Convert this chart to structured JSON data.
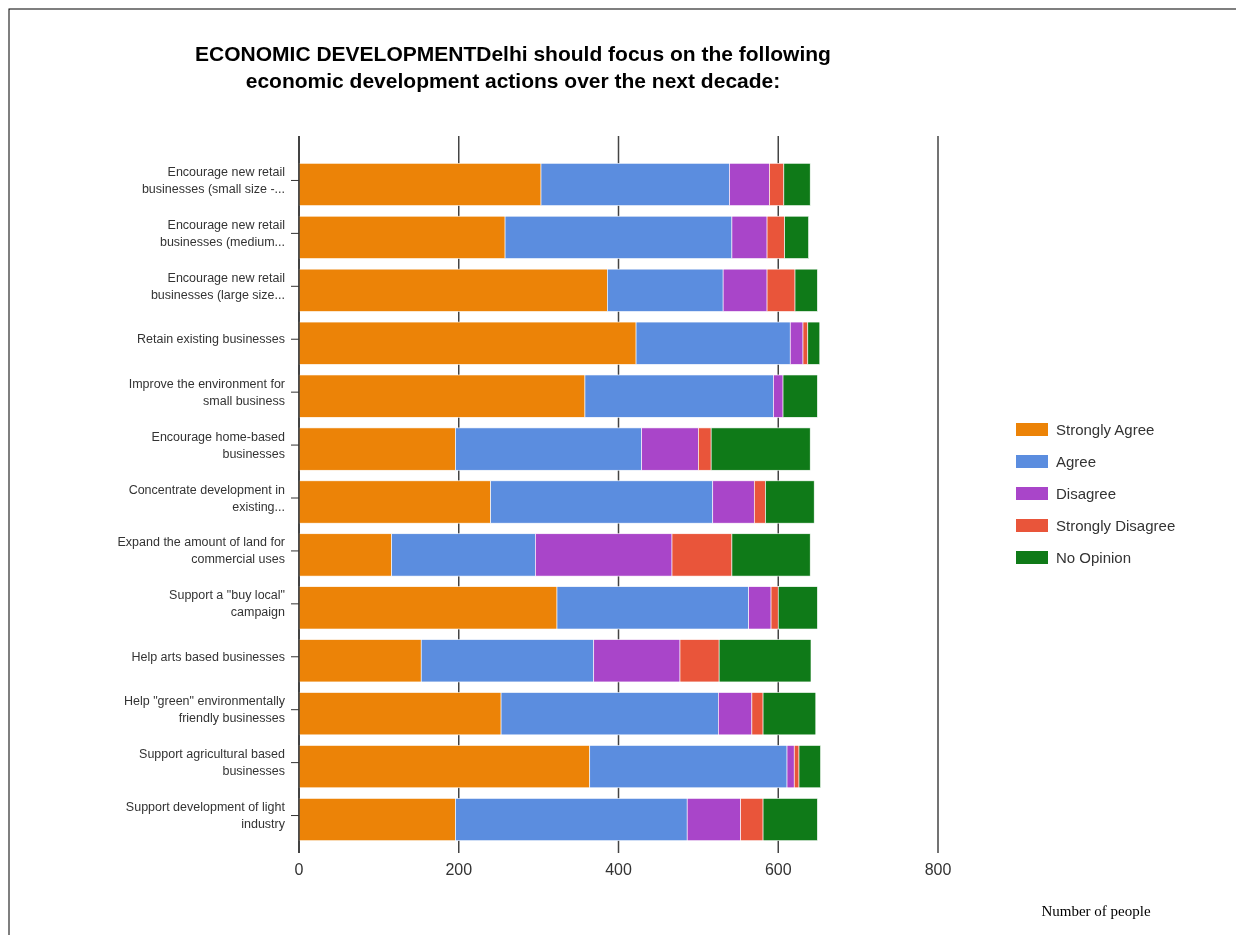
{
  "chart_data": {
    "type": "bar",
    "orientation": "horizontal",
    "stacked": true,
    "title": "ECONOMIC DEVELOPMENTDelhi should focus on the following economic development actions over the next decade:",
    "annotations": [
      "Number of people"
    ],
    "categories": [
      "Encourage new retail businesses (small size -...",
      "Encourage new retail businesses (medium...",
      "Encourage new retail businesses (large size...",
      "Retain existing businesses",
      "Improve the environment for small business",
      "Encourage home-based businesses",
      "Concentrate development in existing...",
      "Expand the amount of land for commercial uses",
      "Support a \"buy local\" campaign",
      "Help arts based businesses",
      "Help \"green\" environmentally friendly businesses",
      "Support agricultural based businesses",
      "Support development of light industry"
    ],
    "series": [
      {
        "name": "Strongly Agree",
        "color": "#ec8307",
        "values": [
          303,
          258,
          386,
          422,
          358,
          196,
          240,
          116,
          323,
          153,
          253,
          364,
          196
        ]
      },
      {
        "name": "Agree",
        "color": "#5b8ddf",
        "values": [
          236,
          284,
          145,
          193,
          236,
          233,
          278,
          180,
          240,
          216,
          272,
          247,
          290
        ]
      },
      {
        "name": "Disagree",
        "color": "#a945c9",
        "values": [
          50,
          44,
          55,
          16,
          12,
          71,
          52,
          171,
          28,
          108,
          42,
          9,
          67
        ]
      },
      {
        "name": "Strongly Disagree",
        "color": "#e9553a",
        "values": [
          18,
          22,
          35,
          6,
          0,
          16,
          14,
          75,
          9,
          49,
          14,
          6,
          28
        ]
      },
      {
        "name": "No Opinion",
        "color": "#0f7a18",
        "values": [
          33,
          30,
          28,
          15,
          43,
          124,
          61,
          98,
          49,
          115,
          66,
          27,
          68
        ]
      }
    ],
    "xlim": [
      0,
      800
    ],
    "xticks": [
      0,
      200,
      400,
      600,
      800
    ],
    "grid": "x",
    "legend": "right"
  }
}
